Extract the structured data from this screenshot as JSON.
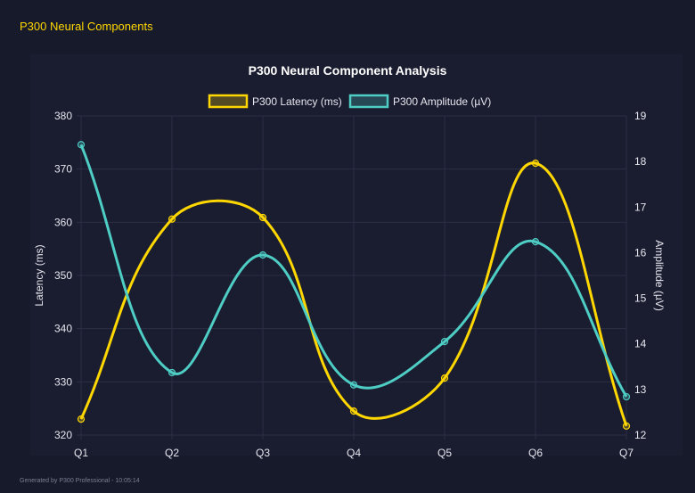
{
  "header": {
    "title": "P300 Neural Components"
  },
  "footer": {
    "text": "Generated by P300 Professional - 10:05:14"
  },
  "chart_data": {
    "type": "line",
    "title": "P300 Neural Component Analysis",
    "categories": [
      "Q1",
      "Q2",
      "Q3",
      "Q4",
      "Q5",
      "Q6",
      "Q7"
    ],
    "series": [
      {
        "name": "P300 Latency (ms)",
        "axis": "left",
        "color": "#FFD700",
        "values": [
          323.0,
          360.6,
          360.9,
          324.5,
          330.7,
          371.1,
          321.7
        ]
      },
      {
        "name": "P300 Amplitude (µV)",
        "axis": "right",
        "color": "#4ECDC4",
        "values": [
          18.37,
          13.37,
          15.95,
          13.1,
          14.05,
          16.24,
          12.84
        ]
      }
    ],
    "ylabel": "Latency (ms)",
    "y2label": "Amplitude (µV)",
    "ylim": [
      320,
      380
    ],
    "y2lim": [
      12,
      19
    ],
    "yticks": [
      "320",
      "330",
      "340",
      "350",
      "360",
      "370",
      "380"
    ],
    "y2ticks": [
      "12",
      "13",
      "14",
      "15",
      "16",
      "17",
      "18",
      "19"
    ],
    "grid": true,
    "legend": "top"
  }
}
